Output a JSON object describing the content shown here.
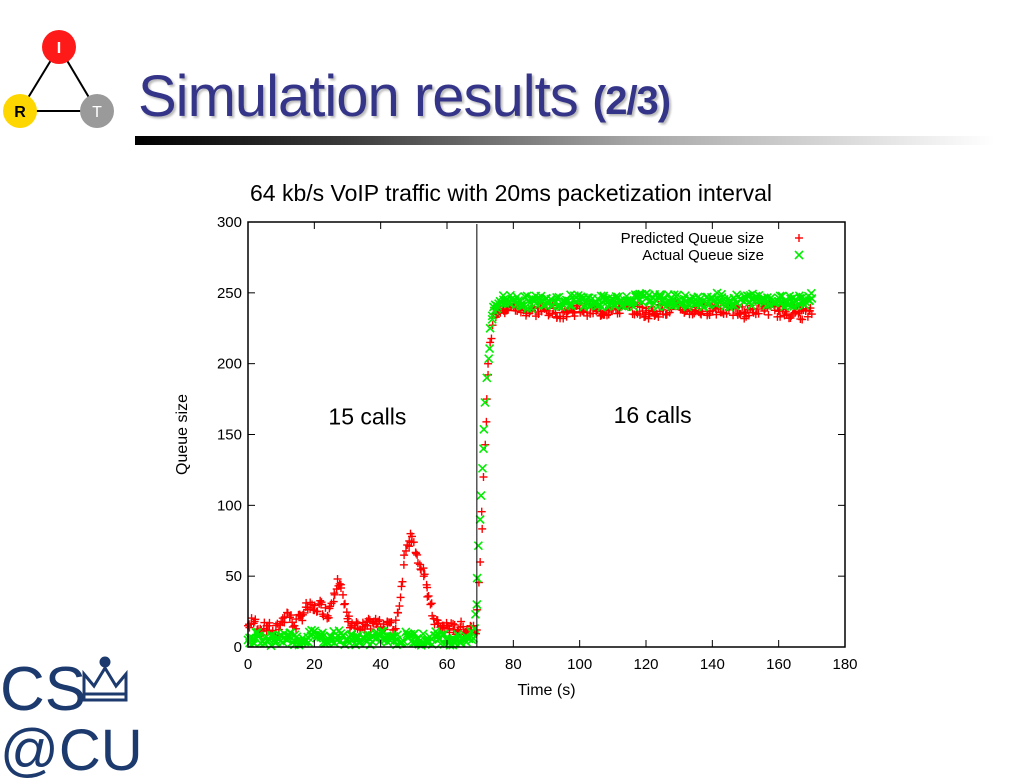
{
  "slide": {
    "title_main": "Simulation results",
    "title_part": "(2/3)",
    "corner_logo": {
      "top": "I",
      "left": "R",
      "right": "T"
    },
    "bottom_logo": {
      "line1": "CS",
      "line2": "@CU"
    }
  },
  "colors": {
    "title": "#343488",
    "predicted": "#ff0000",
    "actual": "#00ee00",
    "logo_top": "#ff1a1a",
    "logo_left": "#ffd700",
    "logo_right": "#9a9a9a",
    "bottom_logo": "#1c3a6e"
  },
  "chart_data": {
    "type": "scatter",
    "title": "64 kb/s VoIP traffic with 20ms packetization interval",
    "xlabel": "Time (s)",
    "ylabel": "Queue size",
    "xlim": [
      0,
      180
    ],
    "ylim": [
      0,
      300
    ],
    "xticks": [
      0,
      20,
      40,
      60,
      80,
      100,
      120,
      140,
      160,
      180
    ],
    "yticks": [
      0,
      50,
      100,
      150,
      200,
      250,
      300
    ],
    "legend_position": "top-right",
    "grid": false,
    "series": [
      {
        "name": "Predicted Queue size",
        "marker": "+",
        "color": "#ff0000",
        "points": [
          [
            0,
            15
          ],
          [
            2,
            18
          ],
          [
            4,
            12
          ],
          [
            6,
            15
          ],
          [
            8,
            8
          ],
          [
            10,
            18
          ],
          [
            12,
            24
          ],
          [
            14,
            15
          ],
          [
            16,
            22
          ],
          [
            18,
            28
          ],
          [
            20,
            26
          ],
          [
            22,
            30
          ],
          [
            24,
            22
          ],
          [
            26,
            38
          ],
          [
            27,
            48
          ],
          [
            28,
            44
          ],
          [
            29,
            30
          ],
          [
            30,
            20
          ],
          [
            32,
            15
          ],
          [
            34,
            12
          ],
          [
            36,
            15
          ],
          [
            38,
            18
          ],
          [
            40,
            14
          ],
          [
            42,
            18
          ],
          [
            44,
            12
          ],
          [
            46,
            35
          ],
          [
            47,
            58
          ],
          [
            48,
            72
          ],
          [
            49,
            80
          ],
          [
            50,
            74
          ],
          [
            51,
            65
          ],
          [
            52,
            55
          ],
          [
            53,
            50
          ],
          [
            54,
            42
          ],
          [
            55,
            30
          ],
          [
            56,
            20
          ],
          [
            58,
            14
          ],
          [
            60,
            15
          ],
          [
            62,
            12
          ],
          [
            64,
            14
          ],
          [
            66,
            12
          ],
          [
            68,
            15
          ],
          [
            69,
            12
          ],
          [
            70,
            60
          ],
          [
            71,
            120
          ],
          [
            72,
            175
          ],
          [
            73,
            215
          ],
          [
            74,
            235
          ],
          [
            76,
            238
          ],
          [
            80,
            240
          ],
          [
            85,
            237
          ],
          [
            90,
            238
          ],
          [
            95,
            236
          ],
          [
            100,
            239
          ],
          [
            105,
            237
          ],
          [
            110,
            238
          ],
          [
            115,
            240
          ],
          [
            120,
            236
          ],
          [
            125,
            238
          ],
          [
            130,
            240
          ],
          [
            135,
            237
          ],
          [
            140,
            239
          ],
          [
            145,
            238
          ],
          [
            150,
            236
          ],
          [
            155,
            240
          ],
          [
            160,
            237
          ],
          [
            165,
            236
          ],
          [
            170,
            235
          ]
        ]
      },
      {
        "name": "Actual Queue size",
        "marker": "x",
        "color": "#00ee00",
        "points": [
          [
            0,
            5
          ],
          [
            3,
            8
          ],
          [
            6,
            4
          ],
          [
            9,
            6
          ],
          [
            12,
            8
          ],
          [
            15,
            5
          ],
          [
            18,
            7
          ],
          [
            21,
            9
          ],
          [
            24,
            6
          ],
          [
            27,
            8
          ],
          [
            30,
            5
          ],
          [
            33,
            6
          ],
          [
            36,
            4
          ],
          [
            39,
            7
          ],
          [
            42,
            8
          ],
          [
            45,
            5
          ],
          [
            48,
            7
          ],
          [
            51,
            6
          ],
          [
            54,
            5
          ],
          [
            57,
            7
          ],
          [
            60,
            6
          ],
          [
            63,
            5
          ],
          [
            66,
            7
          ],
          [
            68,
            6
          ],
          [
            69,
            30
          ],
          [
            70,
            90
          ],
          [
            71,
            140
          ],
          [
            72,
            190
          ],
          [
            73,
            225
          ],
          [
            74,
            240
          ],
          [
            76,
            244
          ],
          [
            80,
            245
          ],
          [
            85,
            243
          ],
          [
            90,
            246
          ],
          [
            95,
            244
          ],
          [
            100,
            245
          ],
          [
            105,
            243
          ],
          [
            110,
            245
          ],
          [
            115,
            244
          ],
          [
            120,
            246
          ],
          [
            125,
            244
          ],
          [
            130,
            245
          ],
          [
            135,
            243
          ],
          [
            140,
            246
          ],
          [
            145,
            244
          ],
          [
            150,
            245
          ],
          [
            155,
            246
          ],
          [
            160,
            244
          ],
          [
            165,
            245
          ],
          [
            170,
            246
          ]
        ]
      }
    ],
    "annotations": [
      {
        "text": "15 calls",
        "x": 36,
        "y": 157
      },
      {
        "text": "16 calls",
        "x": 122,
        "y": 158
      }
    ],
    "vertical_line_x": 69
  }
}
